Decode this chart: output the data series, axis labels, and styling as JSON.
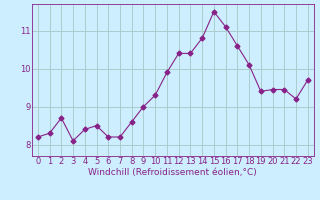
{
  "x": [
    0,
    1,
    2,
    3,
    4,
    5,
    6,
    7,
    8,
    9,
    10,
    11,
    12,
    13,
    14,
    15,
    16,
    17,
    18,
    19,
    20,
    21,
    22,
    23
  ],
  "y": [
    8.2,
    8.3,
    8.7,
    8.1,
    8.4,
    8.5,
    8.2,
    8.2,
    8.6,
    9.0,
    9.3,
    9.9,
    10.4,
    10.4,
    10.8,
    11.5,
    11.1,
    10.6,
    10.1,
    9.4,
    9.45,
    9.45,
    9.2,
    9.7
  ],
  "line_color": "#882288",
  "marker": "D",
  "marker_size": 2.5,
  "bg_color": "#cceeff",
  "grid_color": "#aacccc",
  "xlabel": "Windchill (Refroidissement éolien,°C)",
  "ylim": [
    7.7,
    11.7
  ],
  "xlim": [
    -0.5,
    23.5
  ],
  "xticks": [
    0,
    1,
    2,
    3,
    4,
    5,
    6,
    7,
    8,
    9,
    10,
    11,
    12,
    13,
    14,
    15,
    16,
    17,
    18,
    19,
    20,
    21,
    22,
    23
  ],
  "yticks": [
    8,
    9,
    10,
    11
  ],
  "tick_fontsize": 6,
  "xlabel_fontsize": 6.5
}
